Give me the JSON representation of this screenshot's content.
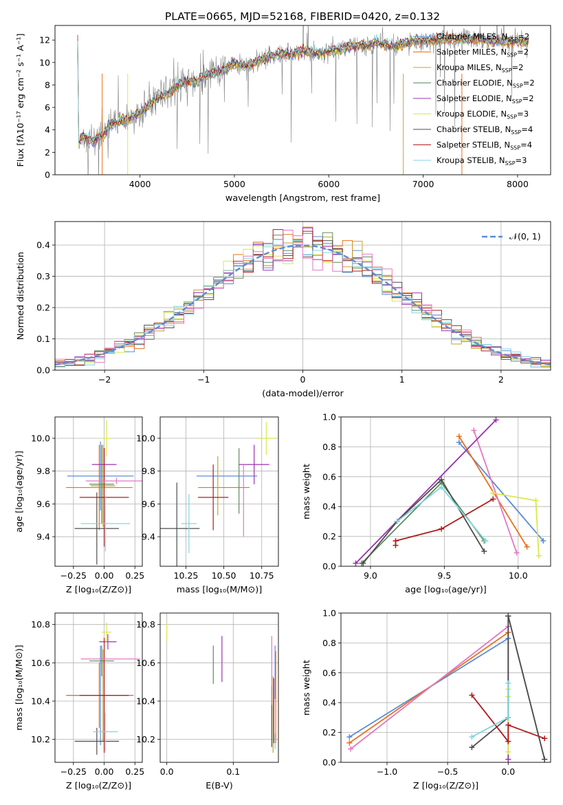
{
  "figure": {
    "title": "PLATE=0665, MJD=52168, FIBERID=0420, z=0.132"
  },
  "legend_spectra": [
    {
      "label": "Chabrier MILES, N",
      "sub": "SSP",
      "suffix": "=2",
      "color": "#5b8bd8"
    },
    {
      "label": "Salpeter MILES, N",
      "sub": "SSP",
      "suffix": "=2",
      "color": "#e8701a"
    },
    {
      "label": "Kroupa MILES, N",
      "sub": "SSP",
      "suffix": "=2",
      "color": "#c8a02a"
    },
    {
      "label": "Chabrier ELODIE, N",
      "sub": "SSP",
      "suffix": "=2",
      "color": "#5c8c5c"
    },
    {
      "label": "Salpeter ELODIE, N",
      "sub": "SSP",
      "suffix": "=2",
      "color": "#9a30b0"
    },
    {
      "label": "Kroupa ELODIE, N",
      "sub": "SSP",
      "suffix": "=3",
      "color": "#d7e84a"
    },
    {
      "label": "Chabrier STELIB, N",
      "sub": "SSP",
      "suffix": "=4",
      "color": "#4d4d4d"
    },
    {
      "label": "Salpeter STELIB, N",
      "sub": "SSP",
      "suffix": "=4",
      "color": "#b01a1a"
    },
    {
      "label": "Kroupa STELIB, N",
      "sub": "SSP",
      "suffix": "=3",
      "color": "#7fd6e0"
    }
  ],
  "data_color": "#808080",
  "chart_data": [
    {
      "id": "spectrum",
      "type": "line",
      "xlabel": "wavelength [Angstrom, rest frame]",
      "ylabel": "Flux [fλ10⁻¹⁷ erg cm⁻² s⁻¹ A⁻¹]",
      "xlim": [
        3100,
        8350
      ],
      "ylim": [
        0,
        13.3
      ],
      "xticks": [
        4000,
        5000,
        6000,
        7000,
        8000
      ],
      "yticks": [
        0,
        2,
        4,
        6,
        8,
        10,
        12
      ],
      "continuum_knots": [
        [
          3350,
          2.8
        ],
        [
          3400,
          3.5
        ],
        [
          3500,
          3.0
        ],
        [
          3600,
          3.6
        ],
        [
          3700,
          4.5
        ],
        [
          3800,
          4.8
        ],
        [
          3900,
          5.1
        ],
        [
          4000,
          5.4
        ],
        [
          4100,
          6.3
        ],
        [
          4200,
          6.9
        ],
        [
          4300,
          7.2
        ],
        [
          4400,
          8.0
        ],
        [
          4500,
          8.3
        ],
        [
          4600,
          8.3
        ],
        [
          4700,
          8.9
        ],
        [
          4800,
          9.1
        ],
        [
          4900,
          9.4
        ],
        [
          5000,
          9.9
        ],
        [
          5100,
          9.7
        ],
        [
          5200,
          9.9
        ],
        [
          5300,
          10.3
        ],
        [
          5400,
          10.6
        ],
        [
          5500,
          10.8
        ],
        [
          5600,
          10.7
        ],
        [
          5700,
          11.0
        ],
        [
          5800,
          11.0
        ],
        [
          5900,
          10.8
        ],
        [
          6000,
          11.0
        ],
        [
          6100,
          11.2
        ],
        [
          6200,
          11.4
        ],
        [
          6300,
          11.5
        ],
        [
          6400,
          11.5
        ],
        [
          6500,
          11.8
        ],
        [
          6600,
          11.6
        ],
        [
          6700,
          11.4
        ],
        [
          6800,
          11.7
        ],
        [
          6900,
          11.9
        ],
        [
          7000,
          11.9
        ],
        [
          7100,
          12.0
        ],
        [
          7200,
          12.1
        ],
        [
          7300,
          12.1
        ],
        [
          7400,
          12.1
        ],
        [
          7500,
          12.1
        ],
        [
          7600,
          12.2
        ],
        [
          7700,
          11.9
        ],
        [
          7800,
          11.9
        ],
        [
          7900,
          11.8
        ],
        [
          8000,
          11.9
        ],
        [
          8100,
          11.8
        ],
        [
          8110,
          12.0
        ]
      ],
      "model_xrange": [
        3340,
        8120
      ],
      "legend_position": "upper right"
    },
    {
      "id": "residuals",
      "type": "histogram",
      "xlabel": "(data-model)/error",
      "ylabel": "Normed distribution",
      "xlim": [
        -2.5,
        2.5
      ],
      "ylim": [
        0,
        0.475
      ],
      "xticks": [
        -2,
        -1,
        0,
        1,
        2
      ],
      "yticks": [
        0.0,
        0.1,
        0.2,
        0.3,
        0.4
      ],
      "bin_width": 0.1,
      "gaussian_label": "𝒩(0, 1)",
      "gaussian_color": "#5b8bd8",
      "legend_position": "upper right",
      "grid": true
    },
    {
      "id": "age_vs_Z",
      "type": "errorbar",
      "xlabel": "Z [log₁₀(Z/Z⊙)]",
      "ylabel": "age  [log₁₀(age/yr)]",
      "xlim": [
        -0.4,
        0.31
      ],
      "ylim": [
        9.22,
        10.13
      ],
      "xticks": [
        -0.25,
        0.0,
        0.25
      ],
      "xticklabels": [
        "−0.25",
        "0.00",
        "0.25"
      ],
      "yticks": [
        9.4,
        9.6,
        9.8,
        10.0
      ],
      "points": [
        {
          "x": -0.03,
          "y": 9.77,
          "xerr": 0.27,
          "yerr": 0.21,
          "color": "#5b8bd8"
        },
        {
          "x": -0.04,
          "y": 9.7,
          "xerr": 0.27,
          "yerr": 0.26,
          "color": "#e8701a"
        },
        {
          "x": -0.01,
          "y": 9.71,
          "xerr": 0.1,
          "yerr": 0.25,
          "color": "#c8a02a"
        },
        {
          "x": -0.02,
          "y": 9.72,
          "xerr": 0.1,
          "yerr": 0.24,
          "color": "#5c8c5c"
        },
        {
          "x": 0.0,
          "y": 9.84,
          "xerr": 0.1,
          "yerr": 0.1,
          "color": "#9a30b0"
        },
        {
          "x": 0.02,
          "y": 10.0,
          "xerr": 0.04,
          "yerr": 0.11,
          "color": "#d7e84a"
        },
        {
          "x": -0.06,
          "y": 9.45,
          "xerr": 0.18,
          "yerr": 0.22,
          "color": "#4d4d4d"
        },
        {
          "x": 0.0,
          "y": 9.64,
          "xerr": 0.2,
          "yerr": 0.3,
          "color": "#b01a1a"
        },
        {
          "x": 0.01,
          "y": 9.48,
          "xerr": 0.2,
          "yerr": 0.17,
          "color": "#7fd6e0"
        },
        {
          "x": 0.1,
          "y": 9.74,
          "xerr": 0.25,
          "yerr": 0.02,
          "color": "#e377c2"
        }
      ]
    },
    {
      "id": "age_vs_mass",
      "type": "errorbar",
      "xlabel": "mass [log₁₀(M/M⊙)]",
      "ylabel": "",
      "xlim": [
        10.08,
        10.86
      ],
      "ylim": [
        9.22,
        10.13
      ],
      "xticks": [
        10.25,
        10.5,
        10.75
      ],
      "xticklabels": [
        "10.25",
        "10.50",
        "10.75"
      ],
      "yticks": [
        9.4,
        9.6,
        9.8,
        10.0
      ],
      "points": [
        {
          "x": 10.52,
          "y": 9.77,
          "xerr": 0.2,
          "yerr": 0.0,
          "color": "#5b8bd8"
        },
        {
          "x": 10.5,
          "y": 9.7,
          "xerr": 0.17,
          "yerr": 0.0,
          "color": "#e8701a"
        },
        {
          "x": 10.46,
          "y": 9.71,
          "xerr": 0.0,
          "yerr": 0.18,
          "color": "#c8a02a"
        },
        {
          "x": 10.6,
          "y": 9.74,
          "xerr": 0.0,
          "yerr": 0.2,
          "color": "#5c8c5c"
        },
        {
          "x": 10.7,
          "y": 9.84,
          "xerr": 0.1,
          "yerr": 0.12,
          "color": "#9a30b0"
        },
        {
          "x": 10.78,
          "y": 10.0,
          "xerr": 0.06,
          "yerr": 0.1,
          "color": "#d7e84a"
        },
        {
          "x": 10.19,
          "y": 9.45,
          "xerr": 0.15,
          "yerr": 0.28,
          "color": "#4d4d4d"
        },
        {
          "x": 10.43,
          "y": 9.64,
          "xerr": 0.1,
          "yerr": 0.2,
          "color": "#b01a1a"
        },
        {
          "x": 10.27,
          "y": 9.48,
          "xerr": 0.05,
          "yerr": 0.18,
          "color": "#7fd6e0"
        },
        {
          "x": 10.63,
          "y": 9.62,
          "xerr": 0.0,
          "yerr": 0.22,
          "color": "#e377c2"
        }
      ]
    },
    {
      "id": "mw_vs_age",
      "type": "line",
      "xlabel": "age  [log₁₀(age/yr)]",
      "ylabel": "mass weight",
      "xlim": [
        8.8,
        10.22
      ],
      "ylim": [
        0,
        1.0
      ],
      "xticks": [
        9.0,
        9.5,
        10.0
      ],
      "xticklabels": [
        "9.0",
        "9.5",
        "10.0"
      ],
      "yticks": [
        0.0,
        0.2,
        0.4,
        0.6,
        0.8,
        1.0
      ],
      "series": [
        {
          "color": "#5b8bd8",
          "x": [
            9.6,
            10.17
          ],
          "y": [
            0.83,
            0.17
          ]
        },
        {
          "color": "#e8701a",
          "x": [
            9.6,
            10.06
          ],
          "y": [
            0.87,
            0.13
          ]
        },
        {
          "color": "#e377c2",
          "x": [
            9.7,
            9.99
          ],
          "y": [
            0.91,
            0.09
          ]
        },
        {
          "color": "#5c8c5c",
          "x": [
            8.94,
            9.48,
            9.77
          ],
          "y": [
            0.02,
            0.56,
            0.17
          ]
        },
        {
          "color": "#9a30b0",
          "x": [
            8.9,
            9.85
          ],
          "y": [
            0.02,
            0.98
          ]
        },
        {
          "color": "#d7e84a",
          "x": [
            9.83,
            10.12,
            10.14
          ],
          "y": [
            0.49,
            0.44,
            0.07
          ]
        },
        {
          "color": "#4d4d4d",
          "x": [
            8.95,
            9.18,
            9.48,
            9.77
          ],
          "y": [
            0.02,
            0.3,
            0.58,
            0.1
          ]
        },
        {
          "color": "#b01a1a",
          "x": [
            9.17,
            9.17,
            9.48,
            9.83
          ],
          "y": [
            0.14,
            0.17,
            0.25,
            0.45
          ]
        },
        {
          "color": "#7fd6e0",
          "x": [
            9.18,
            9.48,
            9.78
          ],
          "y": [
            0.3,
            0.53,
            0.17
          ]
        }
      ]
    },
    {
      "id": "mass_vs_Z",
      "type": "errorbar",
      "xlabel": "Z [log₁₀(Z/Z⊙)]",
      "ylabel": "mass [log₁₀(M/M⊙)]",
      "xlim": [
        -0.4,
        0.31
      ],
      "ylim": [
        10.08,
        10.86
      ],
      "xticks": [
        -0.25,
        0.0,
        0.25
      ],
      "xticklabels": [
        "−0.25",
        "0.00",
        "0.25"
      ],
      "yticks": [
        10.2,
        10.4,
        10.6,
        10.8
      ],
      "points": [
        {
          "x": -0.03,
          "y": 10.43,
          "xerr": 0.27,
          "yerr": 0.26,
          "color": "#5b8bd8"
        },
        {
          "x": -0.04,
          "y": 10.43,
          "xerr": 0.27,
          "yerr": 0.17,
          "color": "#e8701a"
        },
        {
          "x": -0.01,
          "y": 10.43,
          "xerr": 0.1,
          "yerr": 0.24,
          "color": "#c8a02a"
        },
        {
          "x": -0.02,
          "y": 10.61,
          "xerr": 0.1,
          "yerr": 0.08,
          "color": "#5c8c5c"
        },
        {
          "x": 0.03,
          "y": 10.71,
          "xerr": 0.07,
          "yerr": 0.04,
          "color": "#9a30b0"
        },
        {
          "x": 0.02,
          "y": 10.76,
          "xerr": 0.04,
          "yerr": 0.05,
          "color": "#d7e84a"
        },
        {
          "x": -0.06,
          "y": 10.19,
          "xerr": 0.18,
          "yerr": 0.07,
          "color": "#4d4d4d"
        },
        {
          "x": 0.0,
          "y": 10.43,
          "xerr": 0.2,
          "yerr": 0.3,
          "color": "#b01a1a"
        },
        {
          "x": 0.01,
          "y": 10.24,
          "xerr": 0.1,
          "yerr": 0.1,
          "color": "#7fd6e0"
        },
        {
          "x": 0.05,
          "y": 10.62,
          "xerr": 0.24,
          "yerr": 0.0,
          "color": "#e377c2"
        }
      ]
    },
    {
      "id": "mass_vs_EBV",
      "type": "errorbar",
      "xlabel": "E(B-V)",
      "ylabel": "",
      "xlim": [
        -0.01,
        0.168
      ],
      "ylim": [
        10.08,
        10.86
      ],
      "xticks": [
        0.0,
        0.1
      ],
      "xticklabels": [
        "0.0",
        "0.1"
      ],
      "yticks": [
        10.2,
        10.4,
        10.6,
        10.8
      ],
      "points": [
        {
          "x": 0.163,
          "y": 10.55,
          "xerr": 0,
          "yerr": 0.14,
          "color": "#5b8bd8"
        },
        {
          "x": 0.164,
          "y": 10.42,
          "xerr": 0,
          "yerr": 0.24,
          "color": "#e8701a"
        },
        {
          "x": 0.16,
          "y": 10.33,
          "xerr": 0,
          "yerr": 0.2,
          "color": "#c8a02a"
        },
        {
          "x": 0.07,
          "y": 10.59,
          "xerr": 0,
          "yerr": 0.1,
          "color": "#5c8c5c"
        },
        {
          "x": 0.083,
          "y": 10.62,
          "xerr": 0,
          "yerr": 0.12,
          "color": "#9a30b0"
        },
        {
          "x": 0.0,
          "y": 10.76,
          "xerr": 0,
          "yerr": 0.05,
          "color": "#d7e84a"
        },
        {
          "x": 0.158,
          "y": 10.32,
          "xerr": 0,
          "yerr": 0.16,
          "color": "#4d4d4d"
        },
        {
          "x": 0.161,
          "y": 10.35,
          "xerr": 0,
          "yerr": 0.17,
          "color": "#b01a1a"
        },
        {
          "x": 0.163,
          "y": 10.19,
          "xerr": 0,
          "yerr": 0.04,
          "color": "#7fd6e0"
        },
        {
          "x": 0.158,
          "y": 10.56,
          "xerr": 0,
          "yerr": 0.18,
          "color": "#e377c2"
        }
      ]
    },
    {
      "id": "mw_vs_Z",
      "type": "line",
      "xlabel": "Z [log₁₀(Z/Z⊙)]",
      "ylabel": "mass weight",
      "xlim": [
        -1.38,
        0.35
      ],
      "ylim": [
        0,
        1.0
      ],
      "xticks": [
        -1.0,
        -0.5,
        0.0
      ],
      "xticklabels": [
        "−1.0",
        "−0.5",
        "0.0"
      ],
      "yticks": [
        0.0,
        0.2,
        0.4,
        0.6,
        0.8,
        1.0
      ],
      "series": [
        {
          "color": "#5b8bd8",
          "x": [
            -1.31,
            0.0
          ],
          "y": [
            0.17,
            0.83
          ]
        },
        {
          "color": "#e8701a",
          "x": [
            -1.31,
            0.0
          ],
          "y": [
            0.13,
            0.87
          ]
        },
        {
          "color": "#e377c2",
          "x": [
            -1.3,
            0.0
          ],
          "y": [
            0.09,
            0.91
          ]
        },
        {
          "color": "#5c8c5c",
          "x": [
            0.0,
            0.3
          ],
          "y": [
            0.98,
            0.02
          ]
        },
        {
          "color": "#9a30b0",
          "x": [
            0.0,
            0.0
          ],
          "y": [
            0.02,
            0.98
          ]
        },
        {
          "color": "#d7e84a",
          "x": [
            0.0,
            0.0,
            0.0
          ],
          "y": [
            0.07,
            0.44,
            0.49
          ]
        },
        {
          "color": "#4d4d4d",
          "x": [
            -0.3,
            0.0,
            0.0,
            0.3
          ],
          "y": [
            0.1,
            0.3,
            0.98,
            0.02
          ]
        },
        {
          "color": "#b01a1a",
          "x": [
            -0.3,
            0.0,
            0.0,
            0.3
          ],
          "y": [
            0.45,
            0.14,
            0.25,
            0.16
          ]
        },
        {
          "color": "#7fd6e0",
          "x": [
            -0.3,
            0.0,
            0.0
          ],
          "y": [
            0.17,
            0.3,
            0.53
          ]
        }
      ]
    }
  ]
}
